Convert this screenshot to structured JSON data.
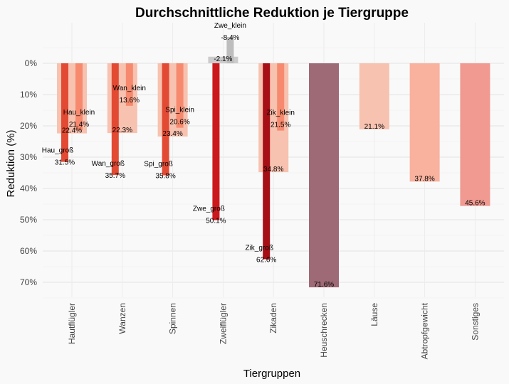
{
  "chart_data": {
    "type": "bar",
    "title": "Durchschnittliche Reduktion je Tiergruppe",
    "xlabel": "Tiergruppen",
    "ylabel": "Reduktion (%)",
    "ylim": [
      -10,
      75
    ],
    "y_reversed": true,
    "yticks": [
      "0%",
      "10%",
      "20%",
      "30%",
      "40%",
      "50%",
      "60%",
      "70%"
    ],
    "grid": true,
    "categories": [
      "Hautflügler",
      "Wanzen",
      "Spinnen",
      "Zweiflügler",
      "Zikaden",
      "Heuschrecken",
      "Läuse",
      "Abtropfgewicht",
      "Sonstiges"
    ],
    "bars": [
      {
        "category": 0,
        "kind": "total",
        "value": 22.4,
        "label": "22.4%",
        "color": "#f7c2b0"
      },
      {
        "category": 0,
        "kind": "gross",
        "value": 31.5,
        "label": "31.5%",
        "name": "Hau_groß",
        "color": "#e34a33"
      },
      {
        "category": 0,
        "kind": "klein",
        "value": 21.4,
        "label": "21.4%",
        "name": "Hau_klein",
        "color": "#f78a6e"
      },
      {
        "category": 1,
        "kind": "total",
        "value": 22.3,
        "label": "22.3%",
        "color": "#f7c2b0"
      },
      {
        "category": 1,
        "kind": "gross",
        "value": 35.7,
        "label": "35.7%",
        "name": "Wan_groß",
        "color": "#e34a33"
      },
      {
        "category": 1,
        "kind": "klein",
        "value": 13.6,
        "label": "13.6%",
        "name": "Wan_klein",
        "color": "#f78a6e"
      },
      {
        "category": 2,
        "kind": "total",
        "value": 23.4,
        "label": "23.4%",
        "color": "#f7c2b0"
      },
      {
        "category": 2,
        "kind": "gross",
        "value": 35.8,
        "label": "35.8%",
        "name": "Spi_groß",
        "color": "#e34a33"
      },
      {
        "category": 2,
        "kind": "klein",
        "value": 20.6,
        "label": "20.6%",
        "name": "Spi_klein",
        "color": "#f78a6e"
      },
      {
        "category": 3,
        "kind": "total",
        "value": -2.1,
        "label": "-2.1%",
        "color": "#cccccc"
      },
      {
        "category": 3,
        "kind": "gross",
        "value": 50.1,
        "label": "50.1%",
        "name": "Zwe_groß",
        "color": "#cb181d"
      },
      {
        "category": 3,
        "kind": "klein",
        "value": -8.4,
        "label": "-8.4%",
        "name": "Zwe_klein",
        "color": "#bdbdbd"
      },
      {
        "category": 4,
        "kind": "total",
        "value": 34.8,
        "label": "34.8%",
        "color": "#f7c2b0"
      },
      {
        "category": 4,
        "kind": "gross",
        "value": 62.6,
        "label": "62.6%",
        "name": "Zik_groß",
        "color": "#a50f15"
      },
      {
        "category": 4,
        "kind": "klein",
        "value": 21.5,
        "label": "21.5%",
        "name": "Zik_klein",
        "color": "#f78a6e"
      },
      {
        "category": 5,
        "kind": "total",
        "value": 71.6,
        "label": "71.6%",
        "color": "#9e6a75"
      },
      {
        "category": 6,
        "kind": "total",
        "value": 21.1,
        "label": "21.1%",
        "color": "#f7c2b0"
      },
      {
        "category": 7,
        "kind": "total",
        "value": 37.8,
        "label": "37.8%",
        "color": "#f8b29e"
      },
      {
        "category": 8,
        "kind": "total",
        "value": 45.6,
        "label": "45.6%",
        "color": "#f09a92"
      }
    ]
  }
}
